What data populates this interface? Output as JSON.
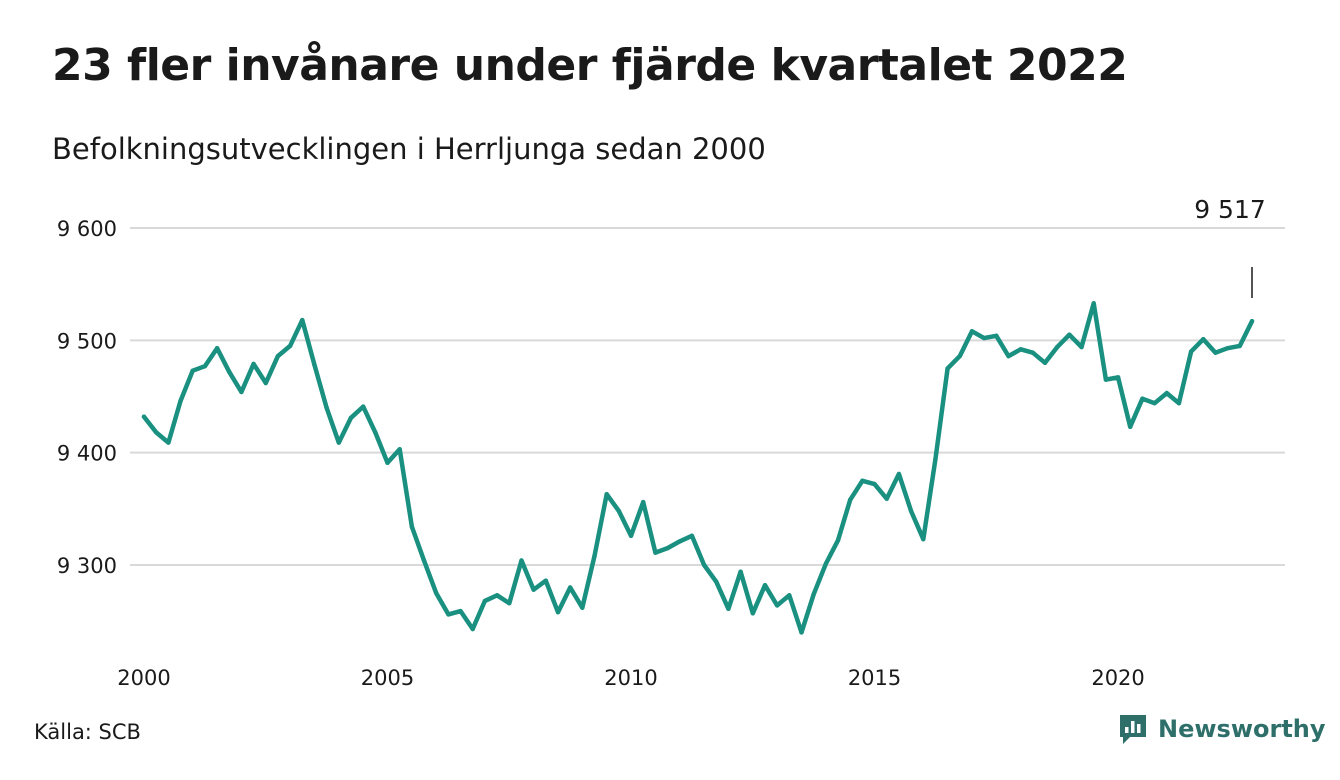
{
  "title": "23 fler invånare under fjärde kvartalet 2022",
  "subtitle": "Befolkningsutvecklingen i Herrljunga sedan 2000",
  "source": "Källa: SCB",
  "brand": {
    "name": "Newsworthy",
    "logo_icon": "newsworthy-logo-icon",
    "color": "#2f6f6a"
  },
  "colors": {
    "line": "#1a9080",
    "grid": "#d9d9d9",
    "text": "#1a1a1a"
  },
  "chart_data": {
    "type": "line",
    "grid": true,
    "legend": "none",
    "ylim": [
      9220,
      9600
    ],
    "xlim": [
      2000,
      2023.3
    ],
    "y_ticks": [
      9300,
      9400,
      9500,
      9600
    ],
    "y_tick_labels": [
      "9 300",
      "9 400",
      "9 500",
      "9 600"
    ],
    "x_ticks": [
      2000,
      2005,
      2010,
      2015,
      2020
    ],
    "x_tick_labels": [
      "2000",
      "2005",
      "2010",
      "2015",
      "2020"
    ],
    "annotation": {
      "label": "9 517",
      "x": 2022.75,
      "y": 9517
    },
    "series": [
      {
        "x": [
          2000.0,
          2000.25,
          2000.5,
          2000.75,
          2001.0,
          2001.25,
          2001.5,
          2001.75,
          2002.0,
          2002.25,
          2002.5,
          2002.75,
          2003.0,
          2003.25,
          2003.5,
          2003.75,
          2004.0,
          2004.25,
          2004.5,
          2004.75,
          2005.0,
          2005.25,
          2005.5,
          2005.75,
          2006.0,
          2006.25,
          2006.5,
          2006.75,
          2007.0,
          2007.25,
          2007.5,
          2007.75,
          2008.0,
          2008.25,
          2008.5,
          2008.75,
          2009.0,
          2009.25,
          2009.5,
          2009.75,
          2010.0,
          2010.25,
          2010.5,
          2010.75,
          2011.0,
          2011.25,
          2011.5,
          2011.75,
          2012.0,
          2012.25,
          2012.5,
          2012.75,
          2013.0,
          2013.25,
          2013.5,
          2013.75,
          2014.0,
          2014.25,
          2014.5,
          2014.75,
          2015.0,
          2015.25,
          2015.5,
          2015.75,
          2016.0,
          2016.25,
          2016.5,
          2016.75,
          2017.0,
          2017.25,
          2017.5,
          2017.75,
          2018.0,
          2018.25,
          2018.5,
          2018.75,
          2019.0,
          2019.25,
          2019.5,
          2019.75,
          2020.0,
          2020.25,
          2020.5,
          2020.75,
          2021.0,
          2021.25,
          2021.5,
          2021.75,
          2022.0,
          2022.25,
          2022.5,
          2022.75
        ],
        "values": [
          9432,
          9418,
          9409,
          9446,
          9473,
          9477,
          9493,
          9472,
          9454,
          9479,
          9462,
          9486,
          9495,
          9518,
          9478,
          9440,
          9409,
          9431,
          9441,
          9418,
          9391,
          9403,
          9334,
          9304,
          9275,
          9256,
          9259,
          9243,
          9268,
          9273,
          9266,
          9304,
          9278,
          9286,
          9258,
          9280,
          9262,
          9308,
          9363,
          9348,
          9326,
          9356,
          9311,
          9315,
          9321,
          9326,
          9300,
          9285,
          9261,
          9294,
          9257,
          9282,
          9264,
          9273,
          9240,
          9274,
          9301,
          9322,
          9358,
          9375,
          9372,
          9359,
          9381,
          9348,
          9323,
          9394,
          9475,
          9486,
          9508,
          9502,
          9504,
          9486,
          9492,
          9489,
          9480,
          9494,
          9505,
          9494,
          9533,
          9465,
          9467,
          9423,
          9448,
          9444,
          9453,
          9444,
          9490,
          9501,
          9489,
          9493,
          9495,
          9517
        ]
      }
    ]
  }
}
